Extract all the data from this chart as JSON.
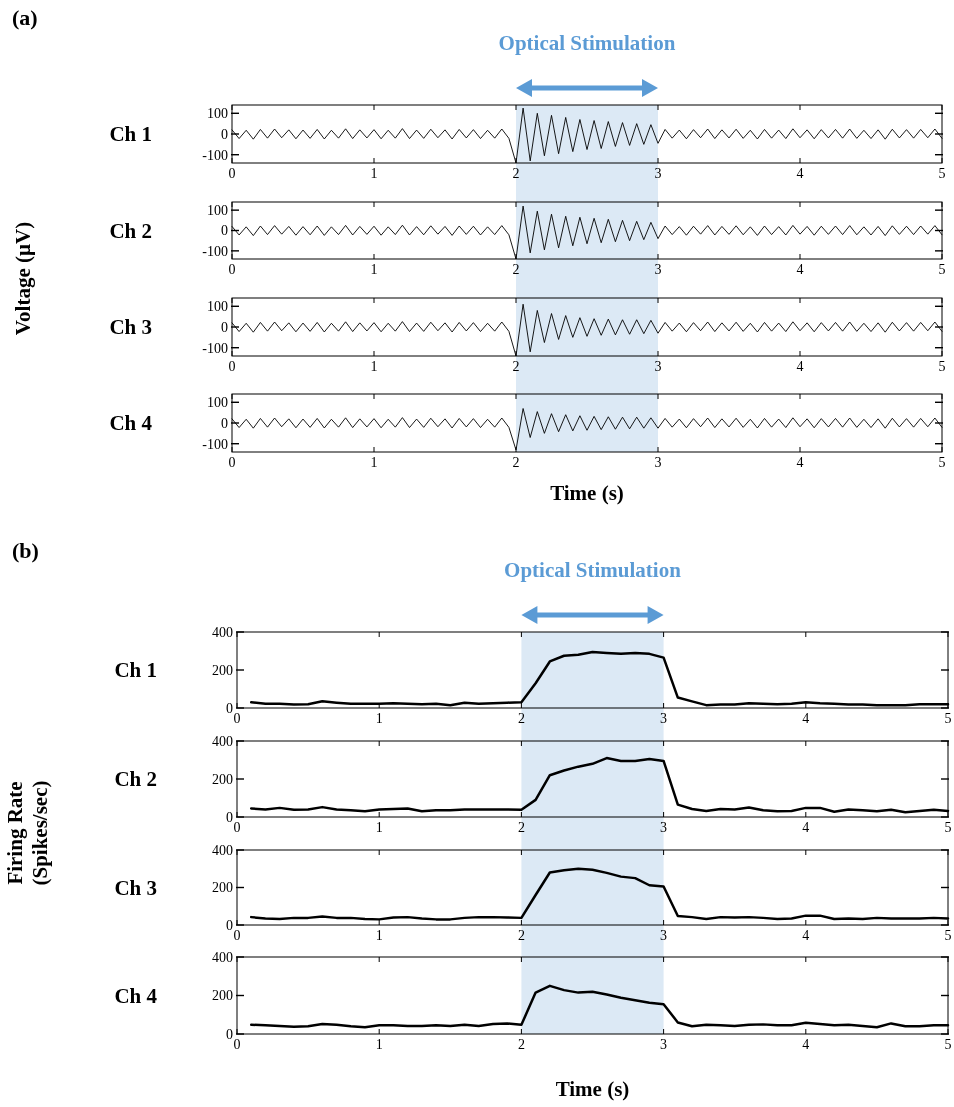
{
  "chart_data": [
    {
      "type": "line",
      "title": "Optical Stimulation",
      "annotations": [
        "(a)"
      ],
      "ylabel": "Voltage (µV)",
      "subtitle": "Ch 1",
      "x": [
        0,
        0.05,
        0.1,
        0.15,
        0.2,
        0.25,
        0.3,
        0.35,
        0.4,
        0.45,
        0.5,
        0.55,
        0.6,
        0.65,
        0.7,
        0.75,
        0.8,
        0.85,
        0.9,
        0.95,
        1,
        1.05,
        1.1,
        1.15,
        1.2,
        1.25,
        1.3,
        1.35,
        1.4,
        1.45,
        1.5,
        1.55,
        1.6,
        1.65,
        1.7,
        1.75,
        1.8,
        1.85,
        1.9,
        1.95,
        2,
        2.05,
        2.1,
        2.15,
        2.2,
        2.25,
        2.3,
        2.35,
        2.4,
        2.45,
        2.5,
        2.55,
        2.6,
        2.65,
        2.7,
        2.75,
        2.8,
        2.85,
        2.9,
        2.95,
        3,
        3.05,
        3.1,
        3.15,
        3.2,
        3.25,
        3.3,
        3.35,
        3.4,
        3.45,
        3.5,
        3.55,
        3.6,
        3.65,
        3.7,
        3.75,
        3.8,
        3.85,
        3.9,
        3.95,
        4,
        4.05,
        4.1,
        4.15,
        4.2,
        4.25,
        4.3,
        4.35,
        4.4,
        4.45,
        4.5,
        4.55,
        4.6,
        4.65,
        4.7,
        4.75,
        4.8,
        4.85,
        4.9,
        4.95,
        5
      ],
      "series": [
        {
          "color": "#000000",
          "values": [
            20,
            -22,
            18,
            -25,
            22,
            -20,
            24,
            -18,
            20,
            -23,
            19,
            -21,
            22,
            -24,
            18,
            -20,
            25,
            -22,
            20,
            -19,
            21,
            -23,
            18,
            -20,
            26,
            -22,
            19,
            -21,
            23,
            -18,
            20,
            -24,
            22,
            -19,
            21,
            -22,
            18,
            -20,
            24,
            -21,
            -140,
            125,
            -130,
            100,
            -105,
            90,
            -95,
            80,
            -85,
            70,
            -75,
            65,
            -70,
            60,
            -60,
            55,
            -55,
            50,
            -50,
            45,
            -45,
            22,
            -20,
            19,
            -23,
            21,
            -18,
            24,
            -22,
            20,
            -19,
            23,
            -21,
            18,
            -24,
            22,
            -20,
            19,
            -22,
            25,
            -18,
            20,
            -23,
            21,
            -19,
            22,
            -20,
            24,
            -21,
            18,
            -22,
            20,
            -25,
            23,
            -19,
            21,
            -20,
            22,
            -18,
            24,
            -21
          ]
        }
      ],
      "xlim": [
        0,
        5
      ],
      "xticks": [
        0,
        1,
        2,
        3,
        4,
        5
      ],
      "ylim": [
        -140,
        140
      ],
      "yticks": [
        -100,
        0,
        100
      ],
      "bands": [
        {
          "axis": "x",
          "from": 2,
          "to": 3,
          "color": "#dce9f5"
        }
      ]
    },
    {
      "type": "line",
      "subtitle": "Ch 2",
      "x": [
        0,
        0.05,
        0.1,
        0.15,
        0.2,
        0.25,
        0.3,
        0.35,
        0.4,
        0.45,
        0.5,
        0.55,
        0.6,
        0.65,
        0.7,
        0.75,
        0.8,
        0.85,
        0.9,
        0.95,
        1,
        1.05,
        1.1,
        1.15,
        1.2,
        1.25,
        1.3,
        1.35,
        1.4,
        1.45,
        1.5,
        1.55,
        1.6,
        1.65,
        1.7,
        1.75,
        1.8,
        1.85,
        1.9,
        1.95,
        2,
        2.05,
        2.1,
        2.15,
        2.2,
        2.25,
        2.3,
        2.35,
        2.4,
        2.45,
        2.5,
        2.55,
        2.6,
        2.65,
        2.7,
        2.75,
        2.8,
        2.85,
        2.9,
        2.95,
        3,
        3.05,
        3.1,
        3.15,
        3.2,
        3.25,
        3.3,
        3.35,
        3.4,
        3.45,
        3.5,
        3.55,
        3.6,
        3.65,
        3.7,
        3.75,
        3.8,
        3.85,
        3.9,
        3.95,
        4,
        4.05,
        4.1,
        4.15,
        4.2,
        4.25,
        4.3,
        4.35,
        4.4,
        4.45,
        4.5,
        4.55,
        4.6,
        4.65,
        4.7,
        4.75,
        4.8,
        4.85,
        4.9,
        4.95,
        5
      ],
      "series": [
        {
          "color": "#000000",
          "values": [
            20,
            -22,
            18,
            -25,
            22,
            -20,
            24,
            -18,
            20,
            -23,
            19,
            -21,
            22,
            -24,
            18,
            -20,
            25,
            -22,
            20,
            -19,
            21,
            -23,
            18,
            -20,
            26,
            -22,
            19,
            -21,
            23,
            -18,
            20,
            -24,
            22,
            -19,
            21,
            -22,
            18,
            -20,
            24,
            -21,
            -140,
            120,
            -110,
            95,
            -95,
            80,
            -85,
            70,
            -75,
            65,
            -65,
            60,
            -60,
            55,
            -55,
            50,
            -50,
            45,
            -45,
            40,
            -40,
            22,
            -20,
            19,
            -23,
            21,
            -18,
            24,
            -22,
            20,
            -19,
            23,
            -21,
            18,
            -24,
            22,
            -20,
            19,
            -22,
            25,
            -18,
            20,
            -23,
            21,
            -19,
            22,
            -20,
            24,
            -21,
            18,
            -22,
            20,
            -25,
            23,
            -19,
            21,
            -20,
            22,
            -18,
            24,
            -21
          ]
        }
      ],
      "xlim": [
        0,
        5
      ],
      "xticks": [
        0,
        1,
        2,
        3,
        4,
        5
      ],
      "ylim": [
        -140,
        140
      ],
      "yticks": [
        -100,
        0,
        100
      ],
      "bands": [
        {
          "axis": "x",
          "from": 2,
          "to": 3,
          "color": "#dce9f5"
        }
      ]
    },
    {
      "type": "line",
      "subtitle": "Ch 3",
      "x": [
        0,
        0.05,
        0.1,
        0.15,
        0.2,
        0.25,
        0.3,
        0.35,
        0.4,
        0.45,
        0.5,
        0.55,
        0.6,
        0.65,
        0.7,
        0.75,
        0.8,
        0.85,
        0.9,
        0.95,
        1,
        1.05,
        1.1,
        1.15,
        1.2,
        1.25,
        1.3,
        1.35,
        1.4,
        1.45,
        1.5,
        1.55,
        1.6,
        1.65,
        1.7,
        1.75,
        1.8,
        1.85,
        1.9,
        1.95,
        2,
        2.05,
        2.1,
        2.15,
        2.2,
        2.25,
        2.3,
        2.35,
        2.4,
        2.45,
        2.5,
        2.55,
        2.6,
        2.65,
        2.7,
        2.75,
        2.8,
        2.85,
        2.9,
        2.95,
        3,
        3.05,
        3.1,
        3.15,
        3.2,
        3.25,
        3.3,
        3.35,
        3.4,
        3.45,
        3.5,
        3.55,
        3.6,
        3.65,
        3.7,
        3.75,
        3.8,
        3.85,
        3.9,
        3.95,
        4,
        4.05,
        4.1,
        4.15,
        4.2,
        4.25,
        4.3,
        4.35,
        4.4,
        4.45,
        4.5,
        4.55,
        4.6,
        4.65,
        4.7,
        4.75,
        4.8,
        4.85,
        4.9,
        4.95,
        5
      ],
      "series": [
        {
          "color": "#000000",
          "values": [
            20,
            -22,
            18,
            -25,
            22,
            -20,
            24,
            -18,
            20,
            -23,
            19,
            -21,
            22,
            -24,
            18,
            -20,
            25,
            -22,
            20,
            -19,
            21,
            -23,
            18,
            -20,
            26,
            -22,
            19,
            -21,
            23,
            -18,
            20,
            -24,
            22,
            -19,
            21,
            -22,
            18,
            -20,
            24,
            -21,
            -140,
            110,
            -120,
            80,
            -75,
            65,
            -60,
            55,
            -50,
            45,
            -45,
            40,
            -40,
            38,
            -38,
            35,
            -35,
            35,
            -32,
            32,
            -30,
            22,
            -20,
            19,
            -23,
            21,
            -18,
            24,
            -22,
            20,
            -19,
            23,
            -21,
            18,
            -24,
            22,
            -20,
            19,
            -22,
            25,
            -18,
            20,
            -23,
            21,
            -19,
            22,
            -20,
            24,
            -21,
            18,
            -22,
            20,
            -25,
            23,
            -19,
            21,
            -20,
            22,
            -18,
            24,
            -21
          ]
        }
      ],
      "xlim": [
        0,
        5
      ],
      "xticks": [
        0,
        1,
        2,
        3,
        4,
        5
      ],
      "ylim": [
        -140,
        140
      ],
      "yticks": [
        -100,
        0,
        100
      ],
      "bands": [
        {
          "axis": "x",
          "from": 2,
          "to": 3,
          "color": "#dce9f5"
        }
      ]
    },
    {
      "type": "line",
      "subtitle": "Ch 4",
      "xlabel": "Time (s)",
      "x": [
        0,
        0.05,
        0.1,
        0.15,
        0.2,
        0.25,
        0.3,
        0.35,
        0.4,
        0.45,
        0.5,
        0.55,
        0.6,
        0.65,
        0.7,
        0.75,
        0.8,
        0.85,
        0.9,
        0.95,
        1,
        1.05,
        1.1,
        1.15,
        1.2,
        1.25,
        1.3,
        1.35,
        1.4,
        1.45,
        1.5,
        1.55,
        1.6,
        1.65,
        1.7,
        1.75,
        1.8,
        1.85,
        1.9,
        1.95,
        2,
        2.05,
        2.1,
        2.15,
        2.2,
        2.25,
        2.3,
        2.35,
        2.4,
        2.45,
        2.5,
        2.55,
        2.6,
        2.65,
        2.7,
        2.75,
        2.8,
        2.85,
        2.9,
        2.95,
        3,
        3.05,
        3.1,
        3.15,
        3.2,
        3.25,
        3.3,
        3.35,
        3.4,
        3.45,
        3.5,
        3.55,
        3.6,
        3.65,
        3.7,
        3.75,
        3.8,
        3.85,
        3.9,
        3.95,
        4,
        4.05,
        4.1,
        4.15,
        4.2,
        4.25,
        4.3,
        4.35,
        4.4,
        4.45,
        4.5,
        4.55,
        4.6,
        4.65,
        4.7,
        4.75,
        4.8,
        4.85,
        4.9,
        4.95,
        5
      ],
      "series": [
        {
          "color": "#000000",
          "values": [
            20,
            -22,
            18,
            -25,
            22,
            -20,
            24,
            -18,
            20,
            -23,
            19,
            -21,
            22,
            -24,
            18,
            -20,
            25,
            -22,
            20,
            -19,
            21,
            -23,
            18,
            -20,
            26,
            -22,
            19,
            -21,
            23,
            -18,
            20,
            -24,
            22,
            -19,
            21,
            -22,
            18,
            -20,
            24,
            -21,
            -130,
            70,
            -70,
            55,
            -50,
            45,
            -42,
            40,
            -38,
            35,
            -35,
            32,
            -32,
            30,
            -30,
            28,
            -28,
            28,
            -25,
            25,
            -25,
            22,
            -20,
            19,
            -23,
            21,
            -18,
            24,
            -22,
            20,
            -19,
            23,
            -21,
            18,
            -24,
            22,
            -20,
            19,
            -22,
            25,
            -18,
            20,
            -23,
            21,
            -19,
            22,
            -20,
            24,
            -21,
            18,
            -22,
            20,
            -25,
            23,
            -19,
            21,
            -20,
            22,
            -18,
            24,
            -21
          ]
        }
      ],
      "xlim": [
        0,
        5
      ],
      "xticks": [
        0,
        1,
        2,
        3,
        4,
        5
      ],
      "ylim": [
        -140,
        140
      ],
      "yticks": [
        -100,
        0,
        100
      ],
      "bands": [
        {
          "axis": "x",
          "from": 2,
          "to": 3,
          "color": "#dce9f5"
        }
      ]
    },
    {
      "type": "line",
      "title": "Optical Stimulation",
      "annotations": [
        "(b)"
      ],
      "ylabel": "Firing Rate\n(Spikes/sec)",
      "subtitle": "Ch 1",
      "x": [
        0.1,
        0.2,
        0.3,
        0.4,
        0.5,
        0.6,
        0.7,
        0.8,
        0.9,
        1,
        1.1,
        1.2,
        1.3,
        1.4,
        1.5,
        1.6,
        1.7,
        1.8,
        1.9,
        2,
        2.1,
        2.2,
        2.3,
        2.4,
        2.5,
        2.6,
        2.7,
        2.8,
        2.9,
        3,
        3.1,
        3.2,
        3.3,
        3.4,
        3.5,
        3.6,
        3.7,
        3.8,
        3.9,
        4,
        4.1,
        4.2,
        4.3,
        4.4,
        4.5,
        4.6,
        4.7,
        4.8,
        4.9,
        5
      ],
      "series": [
        {
          "color": "#000000",
          "values": [
            30,
            22,
            22,
            18,
            20,
            35,
            28,
            22,
            22,
            22,
            25,
            22,
            20,
            22,
            15,
            28,
            22,
            25,
            28,
            30,
            130,
            245,
            275,
            280,
            295,
            290,
            285,
            290,
            285,
            265,
            55,
            35,
            15,
            18,
            18,
            25,
            22,
            20,
            22,
            30,
            25,
            22,
            18,
            18,
            15,
            15,
            15,
            20,
            20,
            20
          ]
        }
      ],
      "xlim": [
        0,
        5
      ],
      "xticks": [
        0,
        1,
        2,
        3,
        4,
        5
      ],
      "ylim": [
        0,
        400
      ],
      "yticks": [
        0,
        200,
        400
      ],
      "bands": [
        {
          "axis": "x",
          "from": 2,
          "to": 3,
          "color": "#dce9f5"
        }
      ]
    },
    {
      "type": "line",
      "subtitle": "Ch 2",
      "x": [
        0.1,
        0.2,
        0.3,
        0.4,
        0.5,
        0.6,
        0.7,
        0.8,
        0.9,
        1,
        1.1,
        1.2,
        1.3,
        1.4,
        1.5,
        1.6,
        1.7,
        1.8,
        1.9,
        2,
        2.1,
        2.2,
        2.3,
        2.4,
        2.5,
        2.6,
        2.7,
        2.8,
        2.9,
        3,
        3.1,
        3.2,
        3.3,
        3.4,
        3.5,
        3.6,
        3.7,
        3.8,
        3.9,
        4,
        4.1,
        4.2,
        4.3,
        4.4,
        4.5,
        4.6,
        4.7,
        4.8,
        4.9,
        5
      ],
      "series": [
        {
          "color": "#000000",
          "values": [
            45,
            40,
            48,
            38,
            40,
            52,
            40,
            35,
            30,
            40,
            42,
            45,
            30,
            35,
            35,
            40,
            40,
            40,
            40,
            38,
            90,
            220,
            245,
            265,
            280,
            310,
            295,
            295,
            305,
            295,
            65,
            42,
            32,
            42,
            40,
            50,
            35,
            30,
            32,
            48,
            48,
            28,
            40,
            35,
            30,
            38,
            25,
            32,
            38,
            32
          ]
        }
      ],
      "xlim": [
        0,
        5
      ],
      "xticks": [
        0,
        1,
        2,
        3,
        4,
        5
      ],
      "ylim": [
        0,
        400
      ],
      "yticks": [
        0,
        200,
        400
      ],
      "bands": [
        {
          "axis": "x",
          "from": 2,
          "to": 3,
          "color": "#dce9f5"
        }
      ]
    },
    {
      "type": "line",
      "subtitle": "Ch 3",
      "x": [
        0.1,
        0.2,
        0.3,
        0.4,
        0.5,
        0.6,
        0.7,
        0.8,
        0.9,
        1,
        1.1,
        1.2,
        1.3,
        1.4,
        1.5,
        1.6,
        1.7,
        1.8,
        1.9,
        2,
        2.1,
        2.2,
        2.3,
        2.4,
        2.5,
        2.6,
        2.7,
        2.8,
        2.9,
        3,
        3.1,
        3.2,
        3.3,
        3.4,
        3.5,
        3.6,
        3.7,
        3.8,
        3.9,
        4,
        4.1,
        4.2,
        4.3,
        4.4,
        4.5,
        4.6,
        4.7,
        4.8,
        4.9,
        5
      ],
      "series": [
        {
          "color": "#000000",
          "values": [
            42,
            35,
            32,
            38,
            38,
            45,
            38,
            38,
            32,
            30,
            40,
            42,
            35,
            30,
            30,
            38,
            42,
            42,
            40,
            38,
            160,
            280,
            292,
            300,
            295,
            278,
            258,
            250,
            212,
            205,
            48,
            42,
            32,
            42,
            40,
            42,
            38,
            32,
            35,
            50,
            50,
            32,
            35,
            32,
            38,
            35,
            35,
            35,
            38,
            35
          ]
        }
      ],
      "xlim": [
        0,
        5
      ],
      "xticks": [
        0,
        1,
        2,
        3,
        4,
        5
      ],
      "ylim": [
        0,
        400
      ],
      "yticks": [
        0,
        200,
        400
      ],
      "bands": [
        {
          "axis": "x",
          "from": 2,
          "to": 3,
          "color": "#dce9f5"
        }
      ]
    },
    {
      "type": "line",
      "subtitle": "Ch 4",
      "xlabel": "Time (s)",
      "x": [
        0.1,
        0.2,
        0.3,
        0.4,
        0.5,
        0.6,
        0.7,
        0.8,
        0.9,
        1,
        1.1,
        1.2,
        1.3,
        1.4,
        1.5,
        1.6,
        1.7,
        1.8,
        1.9,
        2,
        2.1,
        2.2,
        2.3,
        2.4,
        2.5,
        2.6,
        2.7,
        2.8,
        2.9,
        3,
        3.1,
        3.2,
        3.3,
        3.4,
        3.5,
        3.6,
        3.7,
        3.8,
        3.9,
        4,
        4.1,
        4.2,
        4.3,
        4.4,
        4.5,
        4.6,
        4.7,
        4.8,
        4.9,
        5
      ],
      "series": [
        {
          "color": "#000000",
          "values": [
            48,
            45,
            42,
            38,
            40,
            52,
            48,
            40,
            35,
            45,
            45,
            42,
            42,
            45,
            42,
            48,
            42,
            52,
            55,
            48,
            215,
            250,
            228,
            215,
            220,
            205,
            188,
            175,
            162,
            155,
            60,
            40,
            48,
            45,
            42,
            48,
            50,
            45,
            45,
            58,
            52,
            45,
            48,
            42,
            35,
            55,
            40,
            40,
            45,
            45
          ]
        }
      ],
      "xlim": [
        0,
        5
      ],
      "xticks": [
        0,
        1,
        2,
        3,
        4,
        5
      ],
      "ylim": [
        0,
        400
      ],
      "yticks": [
        0,
        200,
        400
      ],
      "bands": [
        {
          "axis": "x",
          "from": 2,
          "to": 3,
          "color": "#dce9f5"
        }
      ]
    }
  ]
}
